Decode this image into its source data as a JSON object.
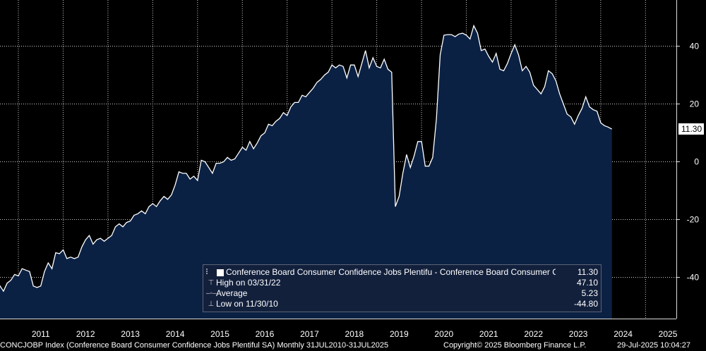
{
  "chart_data": {
    "type": "area",
    "ylim": [
      -55,
      55
    ],
    "yticks": [
      -40,
      -20,
      0,
      20,
      40
    ],
    "xticks": [
      "2011",
      "2012",
      "2013",
      "2014",
      "2015",
      "2016",
      "2017",
      "2018",
      "2019",
      "2020",
      "2021",
      "2022",
      "2023",
      "2024",
      "2025"
    ],
    "grid": true,
    "last_value_label": "11.30",
    "series": [
      {
        "name": "Conference Board Consumer Confidence Jobs Plentifu - Conference Board Consumer Confi...",
        "x_start": "2010-07",
        "frequency": "monthly",
        "values": [
          -41.5,
          -42.8,
          -44.8,
          -42.0,
          -41.0,
          -39.0,
          -39.5,
          -37.0,
          -37.5,
          -38.0,
          -43.0,
          -43.5,
          -43.0,
          -38.0,
          -35.0,
          -37.0,
          -31.5,
          -31.8,
          -30.5,
          -33.5,
          -33.0,
          -33.5,
          -33.0,
          -29.5,
          -27.0,
          -25.5,
          -28.5,
          -27.0,
          -26.5,
          -27.5,
          -26.5,
          -25.5,
          -22.5,
          -21.5,
          -22.5,
          -21.0,
          -20.5,
          -18.5,
          -18.0,
          -17.0,
          -18.0,
          -15.5,
          -14.5,
          -15.5,
          -13.5,
          -12.0,
          -13.0,
          -11.5,
          -8.0,
          -3.5,
          -4.0,
          -4.0,
          -6.0,
          -5.0,
          -6.5,
          0.5,
          0.0,
          -2.0,
          -4.0,
          -0.5,
          -0.5,
          0.0,
          1.5,
          0.5,
          1.0,
          3.0,
          5.0,
          4.0,
          7.0,
          4.5,
          6.5,
          9.0,
          10.0,
          13.0,
          12.5,
          14.0,
          15.0,
          17.0,
          16.0,
          19.0,
          20.5,
          20.5,
          23.0,
          22.5,
          24.0,
          25.5,
          27.5,
          28.5,
          30.0,
          31.0,
          33.5,
          32.5,
          33.5,
          33.0,
          29.0,
          33.5,
          33.5,
          29.5,
          34.0,
          38.5,
          32.5,
          36.0,
          33.0,
          32.5,
          35.5,
          32.0,
          31.0,
          -15.5,
          -12.0,
          -4.0,
          2.5,
          -2.0,
          2.0,
          7.0,
          7.0,
          -1.5,
          -1.5,
          1.5,
          15.0,
          37.0,
          43.8,
          44.0,
          44.0,
          43.3,
          44.2,
          44.5,
          43.8,
          42.5,
          47.1,
          44.5,
          38.5,
          39.0,
          36.5,
          34.5,
          37.5,
          32.0,
          31.5,
          34.0,
          37.5,
          40.5,
          37.0,
          31.5,
          33.0,
          31.0,
          26.5,
          25.0,
          23.5,
          26.0,
          31.5,
          30.5,
          28.0,
          23.5,
          20.0,
          16.5,
          15.5,
          13.0,
          16.0,
          18.5,
          22.5,
          19.0,
          18.0,
          17.5,
          13.5,
          12.5,
          12.0,
          11.3
        ]
      }
    ]
  },
  "legend": {
    "series_label": "Conference Board Consumer Confidence Jobs Plentifu - Conference Board Consumer Confi...",
    "series_value": "11.30",
    "high_label": "High on 03/31/22",
    "high_value": "47.10",
    "average_label": "Average",
    "average_value": "5.23",
    "low_label": "Low on 11/30/10",
    "low_value": "-44.80"
  },
  "footer": {
    "left": "CONCJOBP Index (Conference Board Consumer Confidence Jobs Plentiful SA)  Monthly 31JUL2010-31JUL2025",
    "copyright": "Copyright© 2025 Bloomberg Finance L.P.",
    "timestamp": "29-Jul-2025 10:04:27"
  },
  "colors": {
    "background": "#000000",
    "area_fill": "#0b2144",
    "line": "#ffffff",
    "grid": "#cccccc"
  }
}
